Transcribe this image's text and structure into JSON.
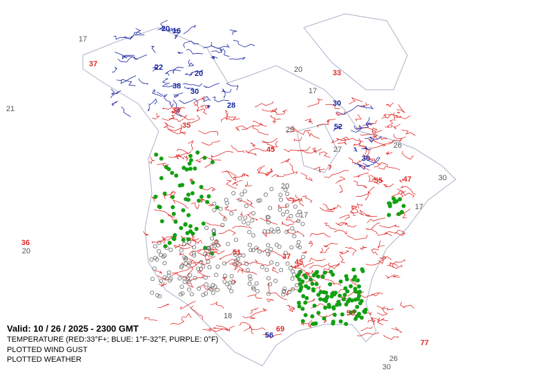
{
  "valid": "Valid: 10 / 26 / 2025  -  2300 GMT",
  "legend": [
    "TEMPERATURE (RED:33°F+; BLUE: 1°F-32°F, PURPLE: 0°F)",
    "PLOTTED WIND GUST",
    "PLOTTED WEATHER"
  ],
  "colors": {
    "red": "#e02828",
    "blue": "#1422a0",
    "gray": "#555555"
  },
  "labels": [
    {
      "text": "17",
      "color": "gray"
    },
    {
      "text": "21",
      "color": "gray"
    },
    {
      "text": "36",
      "color": "red"
    },
    {
      "text": "20",
      "color": "gray"
    },
    {
      "text": "20",
      "color": "blue"
    },
    {
      "text": "16",
      "color": "blue"
    },
    {
      "text": "22",
      "color": "blue"
    },
    {
      "text": "20",
      "color": "blue"
    },
    {
      "text": "38",
      "color": "blue"
    },
    {
      "text": "30",
      "color": "blue"
    },
    {
      "text": "28",
      "color": "blue"
    },
    {
      "text": "37",
      "color": "red"
    },
    {
      "text": "35",
      "color": "red"
    },
    {
      "text": "35",
      "color": "red"
    },
    {
      "text": "33",
      "color": "red"
    },
    {
      "text": "20",
      "color": "gray"
    },
    {
      "text": "17",
      "color": "gray"
    },
    {
      "text": "30",
      "color": "blue"
    },
    {
      "text": "29",
      "color": "gray"
    },
    {
      "text": "52",
      "color": "blue"
    },
    {
      "text": "27",
      "color": "gray"
    },
    {
      "text": "30",
      "color": "blue"
    },
    {
      "text": "26",
      "color": "gray"
    },
    {
      "text": "30",
      "color": "gray"
    },
    {
      "text": "17",
      "color": "gray"
    },
    {
      "text": "45",
      "color": "red"
    },
    {
      "text": "55",
      "color": "red"
    },
    {
      "text": "47",
      "color": "red"
    },
    {
      "text": "56",
      "color": "blue"
    },
    {
      "text": "77",
      "color": "red"
    },
    {
      "text": "30",
      "color": "gray"
    },
    {
      "text": "18",
      "color": "gray"
    },
    {
      "text": "20",
      "color": "gray"
    },
    {
      "text": "17",
      "color": "gray"
    },
    {
      "text": "51",
      "color": "red"
    },
    {
      "text": "37",
      "color": "red"
    },
    {
      "text": "53",
      "color": "red"
    },
    {
      "text": "69",
      "color": "red"
    },
    {
      "text": "26",
      "color": "gray"
    },
    {
      "text": "45",
      "color": "red"
    }
  ]
}
